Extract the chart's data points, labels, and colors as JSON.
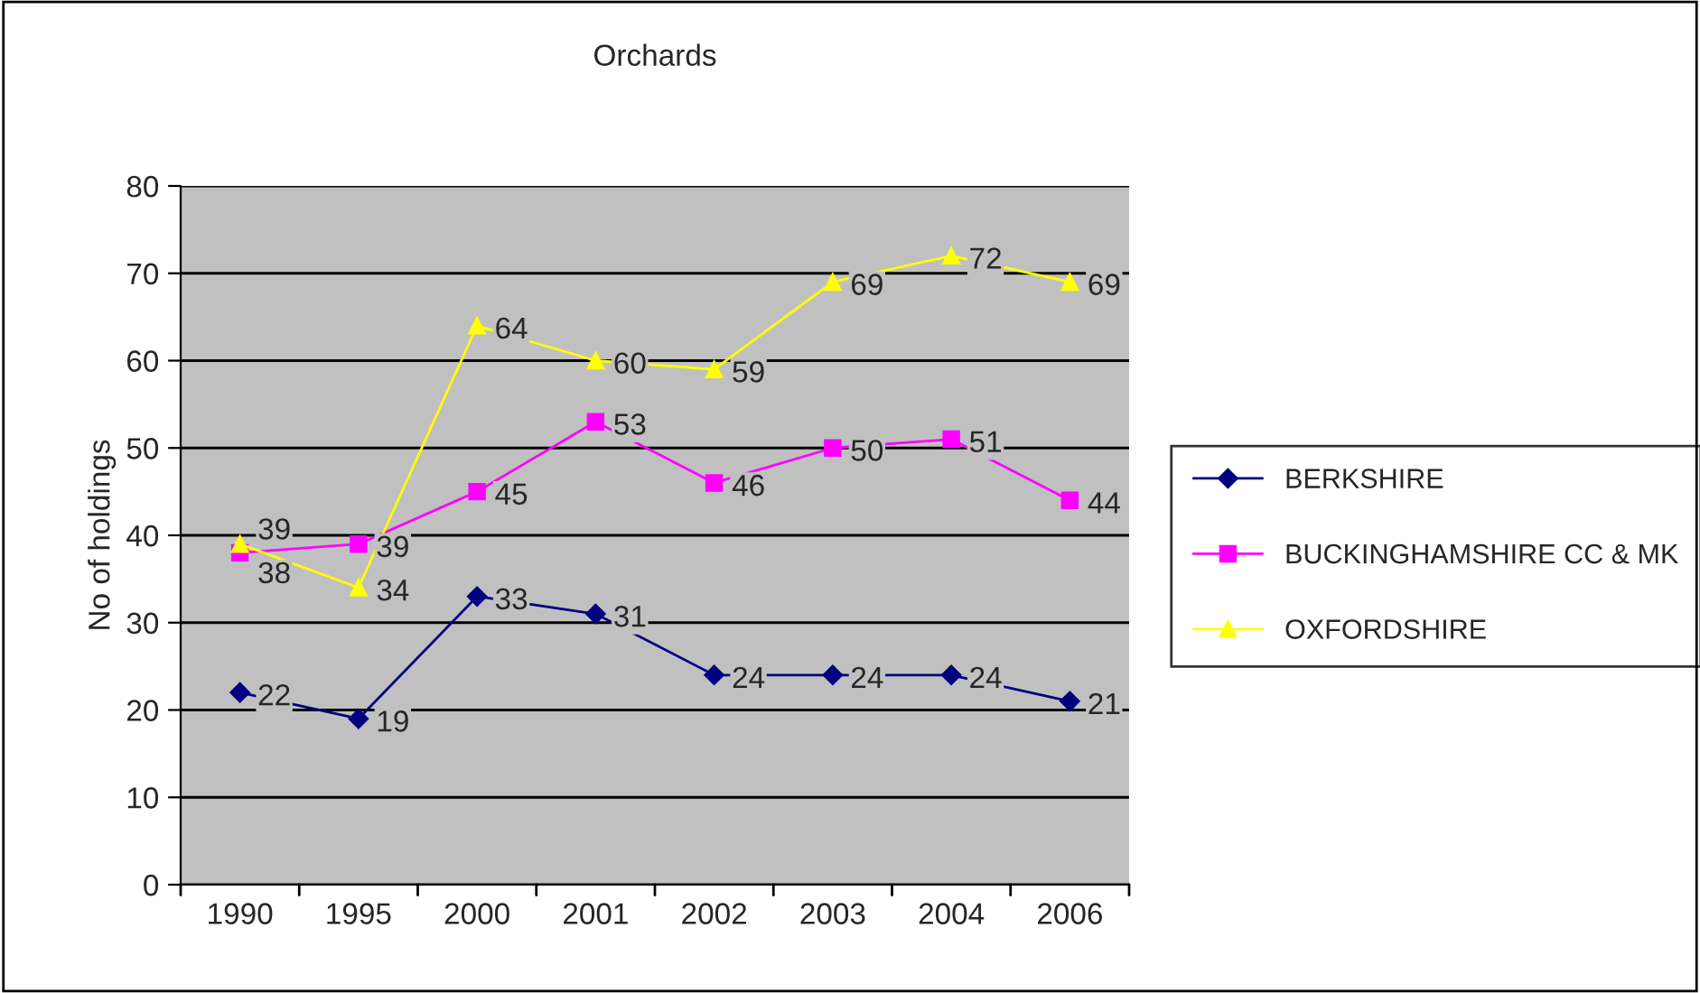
{
  "chart_data": {
    "type": "line",
    "title": "Orchards",
    "ylabel": "No of holdings",
    "categories": [
      "1990",
      "1995",
      "2000",
      "2001",
      "2002",
      "2003",
      "2004",
      "2006"
    ],
    "series": [
      {
        "name": "BERKSHIRE",
        "color": "#000080",
        "marker": "diamond",
        "values": [
          22,
          19,
          33,
          31,
          24,
          24,
          24,
          21
        ]
      },
      {
        "name": "BUCKINGHAMSHIRE CC & MK",
        "color": "#ff00ff",
        "marker": "square",
        "values": [
          38,
          39,
          45,
          53,
          46,
          50,
          51,
          44
        ]
      },
      {
        "name": "OXFORDSHIRE",
        "color": "#ffff00",
        "marker": "triangle",
        "values": [
          39,
          34,
          64,
          60,
          59,
          69,
          72,
          69
        ]
      }
    ],
    "ylim": [
      0,
      80
    ],
    "yticks": [
      0,
      10,
      20,
      30,
      40,
      50,
      60,
      70,
      80
    ],
    "grid": "y",
    "legend": "right",
    "data_labels": true
  }
}
